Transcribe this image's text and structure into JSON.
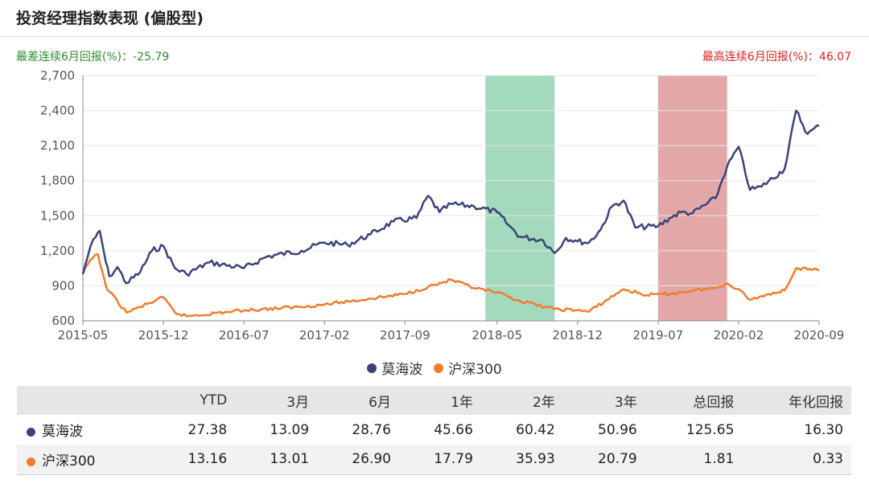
{
  "header": {
    "title": "投资经理指数表现 (偏股型)",
    "worst_6m": "最差连续6月回报(%)：-25.79",
    "best_6m": "最高连续6月回报(%)：46.07"
  },
  "chart_data": {
    "type": "line",
    "title": "",
    "xlabel": "",
    "ylabel": "",
    "ylim": [
      600,
      2700
    ],
    "yticks": [
      "600",
      "900",
      "1,200",
      "1,500",
      "1,800",
      "2,100",
      "2,400",
      "2,700"
    ],
    "x_range": [
      "2015-05",
      "2020-09"
    ],
    "xticks": [
      "2015-05",
      "2015-12",
      "2016-07",
      "2017-02",
      "2017-09",
      "2018-05",
      "2018-12",
      "2019-07",
      "2020-02",
      "2020-09"
    ],
    "grid": "horizontal",
    "legend_position": "bottom",
    "highlight_bands": [
      {
        "label": "worst 6m",
        "start": "2018-04",
        "end": "2018-10",
        "color": "#a3d9bd"
      },
      {
        "label": "best 6m",
        "start": "2019-07",
        "end": "2020-01",
        "color": "#e3a7a7"
      }
    ],
    "series": [
      {
        "name": "莫海波",
        "color": "#3b4478",
        "points": [
          [
            "2015-05",
            1000
          ],
          [
            "2015-05-20",
            1230
          ],
          [
            "2015-06-05",
            1320
          ],
          [
            "2015-06-15",
            1370
          ],
          [
            "2015-07-01",
            1100
          ],
          [
            "2015-07-10",
            980
          ],
          [
            "2015-08-01",
            1060
          ],
          [
            "2015-08-25",
            920
          ],
          [
            "2015-10",
            1020
          ],
          [
            "2015-11",
            1200
          ],
          [
            "2015-12",
            1240
          ],
          [
            "2016-01",
            1050
          ],
          [
            "2016-02",
            1000
          ],
          [
            "2016-04",
            1100
          ],
          [
            "2016-07",
            1050
          ],
          [
            "2016-09",
            1150
          ],
          [
            "2016-12",
            1200
          ],
          [
            "2017-02",
            1270
          ],
          [
            "2017-04",
            1250
          ],
          [
            "2017-06",
            1340
          ],
          [
            "2017-08",
            1450
          ],
          [
            "2017-10",
            1480
          ],
          [
            "2017-11",
            1670
          ],
          [
            "2017-12",
            1530
          ],
          [
            "2018-01",
            1600
          ],
          [
            "2018-03",
            1580
          ],
          [
            "2018-05",
            1530
          ],
          [
            "2018-06",
            1420
          ],
          [
            "2018-07",
            1320
          ],
          [
            "2018-09",
            1290
          ],
          [
            "2018-10",
            1180
          ],
          [
            "2018-11",
            1310
          ],
          [
            "2018-12",
            1280
          ],
          [
            "2019-01",
            1270
          ],
          [
            "2019-02",
            1380
          ],
          [
            "2019-03",
            1580
          ],
          [
            "2019-04",
            1630
          ],
          [
            "2019-05",
            1400
          ],
          [
            "2019-07",
            1410
          ],
          [
            "2019-08",
            1480
          ],
          [
            "2019-09",
            1530
          ],
          [
            "2019-10",
            1520
          ],
          [
            "2019-12",
            1650
          ],
          [
            "2020-01",
            1920
          ],
          [
            "2020-02",
            2090
          ],
          [
            "2020-03",
            1720
          ],
          [
            "2020-04",
            1750
          ],
          [
            "2020-06",
            1900
          ],
          [
            "2020-07",
            2400
          ],
          [
            "2020-08",
            2200
          ],
          [
            "2020-09",
            2270
          ]
        ]
      },
      {
        "name": "沪深300",
        "color": "#f17c2e",
        "points": [
          [
            "2015-05",
            1000
          ],
          [
            "2015-05-20",
            1120
          ],
          [
            "2015-06-10",
            1170
          ],
          [
            "2015-07-01",
            900
          ],
          [
            "2015-07-10",
            850
          ],
          [
            "2015-08-25",
            670
          ],
          [
            "2015-10",
            720
          ],
          [
            "2015-12",
            800
          ],
          [
            "2016-01",
            670
          ],
          [
            "2016-02",
            640
          ],
          [
            "2016-07",
            690
          ],
          [
            "2016-12",
            720
          ],
          [
            "2017-02",
            740
          ],
          [
            "2017-06",
            790
          ],
          [
            "2017-09",
            830
          ],
          [
            "2017-11",
            890
          ],
          [
            "2018-01",
            950
          ],
          [
            "2018-03",
            880
          ],
          [
            "2018-05",
            840
          ],
          [
            "2018-07",
            770
          ],
          [
            "2018-10",
            700
          ],
          [
            "2018-12",
            690
          ],
          [
            "2019-01",
            680
          ],
          [
            "2019-04",
            870
          ],
          [
            "2019-06",
            820
          ],
          [
            "2019-08",
            830
          ],
          [
            "2019-10",
            860
          ],
          [
            "2019-12",
            880
          ],
          [
            "2020-01",
            920
          ],
          [
            "2020-02",
            870
          ],
          [
            "2020-03",
            780
          ],
          [
            "2020-05",
            840
          ],
          [
            "2020-06",
            860
          ],
          [
            "2020-07",
            1050
          ],
          [
            "2020-08",
            1040
          ],
          [
            "2020-09",
            1030
          ]
        ]
      }
    ]
  },
  "legend": [
    {
      "label": "莫海波",
      "color": "#3b4478"
    },
    {
      "label": "沪深300",
      "color": "#f17c2e"
    }
  ],
  "table": {
    "headers": [
      "",
      "YTD",
      "3月",
      "6月",
      "1年",
      "2年",
      "3年",
      "总回报",
      "年化回报"
    ],
    "rows": [
      {
        "name": "莫海波",
        "color": "#3b4478",
        "values": [
          "27.38",
          "13.09",
          "28.76",
          "45.66",
          "60.42",
          "50.96",
          "125.65",
          "16.30"
        ]
      },
      {
        "name": "沪深300",
        "color": "#f17c2e",
        "values": [
          "13.16",
          "13.01",
          "26.90",
          "17.79",
          "35.93",
          "20.79",
          "1.81",
          "0.33"
        ]
      }
    ]
  }
}
